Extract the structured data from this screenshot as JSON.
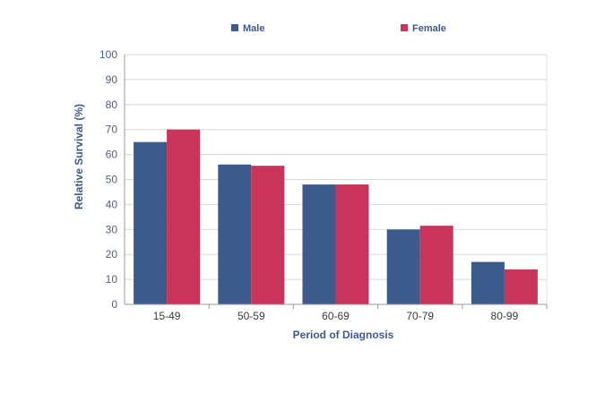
{
  "chart_data": {
    "type": "bar",
    "categories": [
      "15-49",
      "50-59",
      "60-69",
      "70-79",
      "80-99"
    ],
    "series": [
      {
        "name": "Male",
        "values": [
          65,
          56,
          48,
          30,
          17
        ],
        "color": "#3d5a8c"
      },
      {
        "name": "Female",
        "values": [
          70,
          55.5,
          48,
          31.5,
          14
        ],
        "color": "#c8345a"
      }
    ],
    "xlabel": "Period of Diagnosis",
    "ylabel": "Relative Survival (%)",
    "ylim": [
      0,
      100
    ],
    "yticks": [
      "0",
      "10",
      "20",
      "30",
      "40",
      "50",
      "60",
      "70",
      "80",
      "90",
      "100"
    ],
    "grid": true,
    "legend_position": "top-center"
  }
}
